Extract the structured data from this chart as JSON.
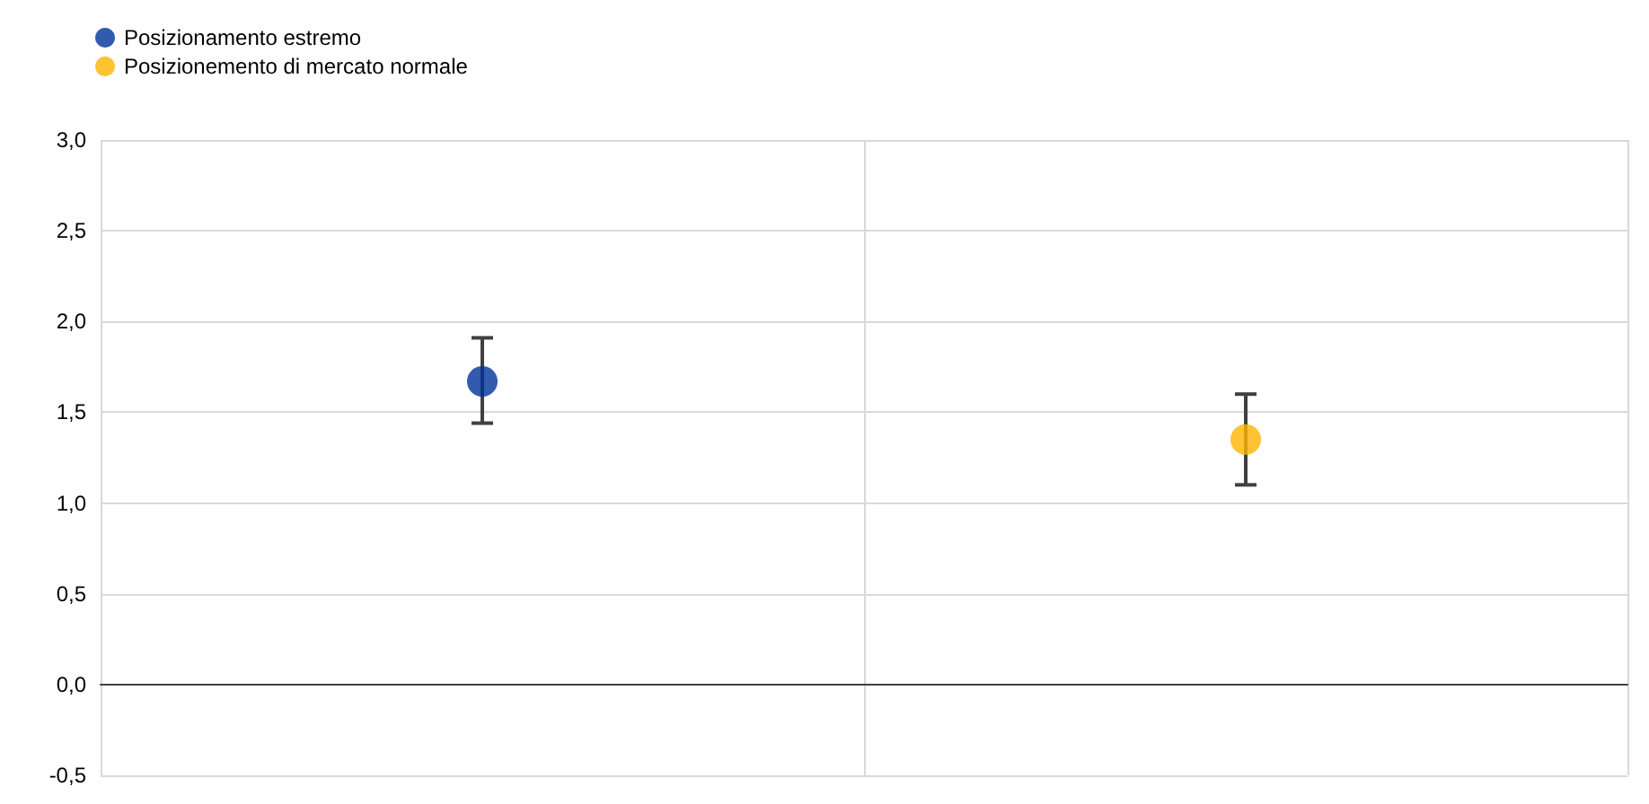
{
  "chart_data": {
    "type": "scatter",
    "categories": [
      null,
      null
    ],
    "series": [
      {
        "name": "Posizionamento estremo",
        "color": "#003299",
        "values": [
          1.67,
          null
        ],
        "errors": [
          [
            1.44,
            1.91
          ],
          null
        ]
      },
      {
        "name": "Posizionemento di mercato normale",
        "color": "#ffb400",
        "values": [
          null,
          1.35
        ],
        "errors": [
          null,
          [
            1.1,
            1.6
          ]
        ]
      }
    ],
    "ylim": [
      -0.5,
      3.0
    ],
    "yticks": [
      {
        "value": -0.5,
        "label": "-0,5"
      },
      {
        "value": 0,
        "label": "0,0"
      },
      {
        "value": 0.5,
        "label": "0,5"
      },
      {
        "value": 1,
        "label": "1,0"
      },
      {
        "value": 1.5,
        "label": "1,5"
      },
      {
        "value": 2,
        "label": "2,0"
      },
      {
        "value": 2.5,
        "label": "2,5"
      },
      {
        "value": 3,
        "label": "3,0"
      }
    ],
    "grid": true,
    "legend": "top left",
    "marker": "circle"
  }
}
